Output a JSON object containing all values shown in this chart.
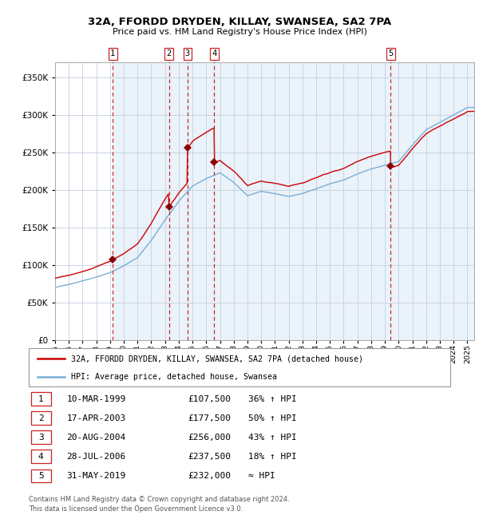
{
  "title": "32A, FFORDD DRYDEN, KILLAY, SWANSEA, SA2 7PA",
  "subtitle": "Price paid vs. HM Land Registry's House Price Index (HPI)",
  "legend_line1": "32A, FFORDD DRYDEN, KILLAY, SWANSEA, SA2 7PA (detached house)",
  "legend_line2": "HPI: Average price, detached house, Swansea",
  "footer1": "Contains HM Land Registry data © Crown copyright and database right 2024.",
  "footer2": "This data is licensed under the Open Government Licence v3.0.",
  "sales": [
    {
      "num": 1,
      "date_dec": 1999.19,
      "price": 107500,
      "date_str": "10-MAR-1999",
      "price_str": "£107,500",
      "hpi_str": "36% ↑ HPI"
    },
    {
      "num": 2,
      "date_dec": 2003.29,
      "price": 177500,
      "date_str": "17-APR-2003",
      "price_str": "£177,500",
      "hpi_str": "50% ↑ HPI"
    },
    {
      "num": 3,
      "date_dec": 2004.64,
      "price": 256000,
      "date_str": "20-AUG-2004",
      "price_str": "£256,000",
      "hpi_str": "43% ↑ HPI"
    },
    {
      "num": 4,
      "date_dec": 2006.57,
      "price": 237500,
      "date_str": "28-JUL-2006",
      "price_str": "£237,500",
      "hpi_str": "18% ↑ HPI"
    },
    {
      "num": 5,
      "date_dec": 2019.41,
      "price": 232000,
      "date_str": "31-MAY-2019",
      "price_str": "£232,000",
      "hpi_str": "≈ HPI"
    }
  ],
  "hpi_color": "#7bafd4",
  "price_color": "#cc0000",
  "marker_color": "#8b0000",
  "dashed_color": "#cc2222",
  "bg_stripe_color": "#ddeaf7",
  "ylim": [
    0,
    370000
  ],
  "yticks": [
    0,
    50000,
    100000,
    150000,
    200000,
    250000,
    300000,
    350000
  ],
  "xlim_start": 1995.0,
  "xlim_end": 2025.5,
  "base_years": [
    1995,
    1996,
    1997,
    1998,
    1999,
    2000,
    2001,
    2002,
    2003,
    2004,
    2005,
    2006,
    2007,
    2008,
    2009,
    2010,
    2011,
    2012,
    2013,
    2014,
    2015,
    2016,
    2017,
    2018,
    2019,
    2020,
    2021,
    2022,
    2023,
    2024,
    2025
  ],
  "hpi_base": [
    70000,
    74000,
    79000,
    84000,
    90000,
    99000,
    110000,
    133000,
    160000,
    185000,
    205000,
    215000,
    223000,
    210000,
    192000,
    198000,
    195000,
    191000,
    195000,
    201000,
    208000,
    213000,
    221000,
    228000,
    233000,
    238000,
    260000,
    280000,
    290000,
    300000,
    310000
  ]
}
